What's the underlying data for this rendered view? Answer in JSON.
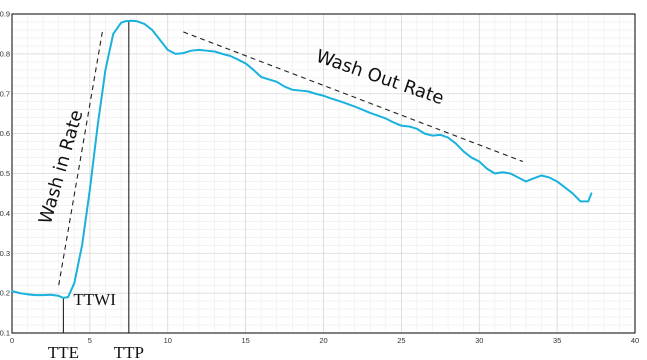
{
  "chart_data": {
    "type": "line",
    "title": "",
    "xlabel": "",
    "ylabel": "",
    "xlim": [
      0,
      40
    ],
    "ylim": [
      0.1,
      0.9
    ],
    "grid": true,
    "x_ticks": [
      "0",
      "5",
      "10",
      "15",
      "20",
      "25",
      "30",
      "35",
      "40"
    ],
    "y_ticks": [
      "0.1",
      "0.2",
      "0.3",
      "0.4",
      "0.5",
      "0.6",
      "0.7",
      "0.8",
      "0.9"
    ],
    "line_color": "#1ab2dc",
    "series": [
      {
        "x": [
          0,
          0.5,
          1,
          1.5,
          2,
          2.5,
          3,
          3.3,
          3.6,
          4,
          4.5,
          5,
          5.5,
          6,
          6.5,
          7,
          7.3,
          7.6,
          8,
          8.5,
          9,
          9.5,
          10,
          10.5,
          11,
          11.5,
          12,
          12.5,
          13,
          13.5,
          14,
          14.5,
          15,
          15.5,
          16,
          16.5,
          17,
          17.5,
          18,
          18.5,
          19,
          19.5,
          20,
          20.5,
          21,
          21.5,
          22,
          22.5,
          23,
          23.5,
          24,
          24.5,
          25,
          25.5,
          26,
          26.5,
          27,
          27.5,
          28,
          28.5,
          29,
          29.5,
          30,
          30.5,
          31,
          31.5,
          32,
          32.5,
          33,
          33.5,
          34,
          34.5,
          35,
          35.5,
          36,
          36.5,
          37,
          37.2
        ],
        "y": [
          0.205,
          0.2,
          0.197,
          0.195,
          0.195,
          0.196,
          0.193,
          0.188,
          0.19,
          0.225,
          0.32,
          0.46,
          0.62,
          0.76,
          0.85,
          0.878,
          0.882,
          0.883,
          0.882,
          0.875,
          0.86,
          0.835,
          0.81,
          0.8,
          0.802,
          0.808,
          0.81,
          0.808,
          0.806,
          0.8,
          0.795,
          0.786,
          0.776,
          0.76,
          0.742,
          0.736,
          0.73,
          0.718,
          0.71,
          0.708,
          0.706,
          0.7,
          0.695,
          0.688,
          0.682,
          0.675,
          0.668,
          0.66,
          0.652,
          0.645,
          0.638,
          0.628,
          0.62,
          0.618,
          0.612,
          0.6,
          0.595,
          0.597,
          0.59,
          0.575,
          0.555,
          0.54,
          0.53,
          0.512,
          0.5,
          0.503,
          0.5,
          0.49,
          0.48,
          0.488,
          0.495,
          0.49,
          0.48,
          0.465,
          0.45,
          0.43,
          0.43,
          0.45
        ]
      }
    ],
    "reference_lines": [
      {
        "x": 3.3,
        "label": "TTWI"
      },
      {
        "x": 7.5,
        "label": ""
      }
    ],
    "axis_markers": [
      {
        "x": 3.3,
        "label": "TTE"
      },
      {
        "x": 7.5,
        "label": "TTP"
      }
    ],
    "trend_lines": [
      {
        "label": "Wash in Rate",
        "from": [
          3,
          0.22
        ],
        "to": [
          5.8,
          0.855
        ]
      },
      {
        "label": "Wash Out Rate",
        "from": [
          11,
          0.855
        ],
        "to": [
          32.8,
          0.53
        ]
      }
    ]
  }
}
